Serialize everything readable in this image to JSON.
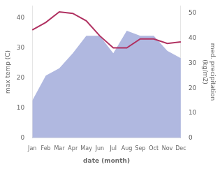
{
  "chart_data": {
    "type": "line",
    "categories": [
      "Jan",
      "Feb",
      "Mar",
      "Apr",
      "May",
      "Jun",
      "Jul",
      "Aug",
      "Sep",
      "Oct",
      "Nov",
      "Dec"
    ],
    "series": [
      {
        "type": "area",
        "color": "#b0b8e0",
        "axis": "y2",
        "values": [
          15,
          25,
          28,
          34,
          41,
          41,
          34,
          43,
          41,
          41,
          35,
          32
        ]
      },
      {
        "type": "line",
        "color": "#b03060",
        "values": [
          36,
          38.5,
          42,
          41.5,
          39,
          34,
          30,
          30,
          33,
          33,
          31.5,
          32
        ]
      }
    ],
    "xlabel": "date (month)",
    "ylabel": "max temp (C)",
    "y2label": "med. precipitation\n(kg/m2)",
    "ylim": [
      0,
      44
    ],
    "yticks": [
      0,
      10,
      20,
      30,
      40
    ],
    "y2lim": [
      0,
      53
    ],
    "y2ticks": [
      0,
      10,
      20,
      30,
      40,
      50
    ],
    "grid": false
  }
}
